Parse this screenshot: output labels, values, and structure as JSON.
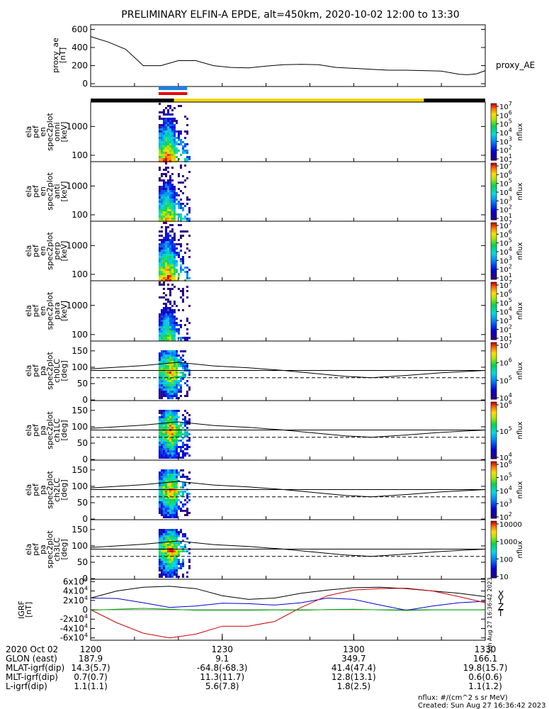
{
  "title": "PRELIMINARY ELFIN-A EPDE, alt=450km, 2020-10-02 12:00 to 13:30",
  "colors": {
    "ae_line": "#000000",
    "sci_blue": "#1e7fe6",
    "sci_red": "#e60000",
    "orbit_black": "#000000",
    "orbit_yellow": "#f5d60a",
    "grf_x": "#000000",
    "grf_y": "#0000cc",
    "grf_z": "#cc0000",
    "grf_t": "#00b000"
  },
  "chart_data": [
    {
      "type": "line",
      "panel": "proxy_ae",
      "ylabel": [
        "proxy_ae",
        "[nT]"
      ],
      "series_label": "proxy_AE",
      "ylim": [
        -30,
        650
      ],
      "yticks": [
        0,
        200,
        400,
        600
      ],
      "x_minutes": [
        0,
        4,
        8,
        12,
        16,
        20,
        24,
        28,
        32,
        36,
        40,
        44,
        48,
        52,
        56,
        60,
        64,
        68,
        72,
        76,
        80,
        84,
        86,
        88,
        90
      ],
      "values": [
        520,
        460,
        380,
        200,
        200,
        255,
        255,
        200,
        180,
        175,
        195,
        210,
        215,
        210,
        180,
        170,
        160,
        150,
        150,
        145,
        140,
        105,
        100,
        110,
        145
      ]
    },
    {
      "type": "heatmap",
      "panel": "omni",
      "ylabel": [
        "ela",
        "pef",
        "en",
        "spec2plot",
        "omni",
        "[keV]"
      ],
      "yticks": [
        "100",
        "1000"
      ],
      "colorbar_label": "nflux",
      "colorbar_ticks": [
        "10^1",
        "10^2",
        "10^3",
        "10^4",
        "10^5",
        "10^6",
        "10^7"
      ]
    },
    {
      "type": "heatmap",
      "panel": "anti",
      "ylabel": [
        "ela",
        "pef",
        "en",
        "spec2plot",
        "anti",
        "[keV]"
      ],
      "yticks": [
        "100",
        "1000"
      ],
      "colorbar_label": "nflux",
      "colorbar_ticks": [
        "10^1",
        "10^2",
        "10^3",
        "10^4",
        "10^5",
        "10^6",
        "10^7"
      ]
    },
    {
      "type": "heatmap",
      "panel": "perp",
      "ylabel": [
        "ela",
        "pef",
        "en",
        "spec2plot",
        "perp",
        "[keV]"
      ],
      "yticks": [
        "100",
        "1000"
      ],
      "colorbar_label": "nflux",
      "colorbar_ticks": [
        "10^1",
        "10^2",
        "10^3",
        "10^4",
        "10^5",
        "10^6",
        "10^7"
      ]
    },
    {
      "type": "heatmap",
      "panel": "para",
      "ylabel": [
        "ela",
        "pef",
        "en",
        "spec2plot",
        "para",
        "[keV]"
      ],
      "yticks": [
        "100",
        "1000"
      ],
      "colorbar_label": "nflux",
      "colorbar_ticks": [
        "10^1",
        "10^2",
        "10^3",
        "10^4",
        "10^5",
        "10^6",
        "10^7"
      ]
    },
    {
      "type": "heatmap",
      "panel": "ch0LC",
      "ylabel": [
        "ela",
        "pef",
        "pa",
        "spec2plot",
        "ch0LC",
        "[deg]"
      ],
      "yticks": [
        "0",
        "50",
        "100",
        "150"
      ],
      "colorbar_label": "nflux",
      "colorbar_ticks": [
        "10^4",
        "10^5",
        "10^6",
        "10^7"
      ]
    },
    {
      "type": "heatmap",
      "panel": "ch1LC",
      "ylabel": [
        "ela",
        "pef",
        "pa",
        "spec2plot",
        "ch1LC",
        "[deg]"
      ],
      "yticks": [
        "0",
        "50",
        "100",
        "150"
      ],
      "colorbar_label": "nflux",
      "colorbar_ticks": [
        "10^4",
        "10^5",
        "10^6"
      ]
    },
    {
      "type": "heatmap",
      "panel": "ch2LC",
      "ylabel": [
        "ela",
        "pef",
        "pa",
        "spec2plot",
        "ch2LC",
        "[deg]"
      ],
      "yticks": [
        "0",
        "50",
        "100",
        "150"
      ],
      "colorbar_label": "nflux",
      "colorbar_ticks": [
        "10^2",
        "10^3",
        "10^4",
        "10^5",
        "10^6"
      ]
    },
    {
      "type": "heatmap",
      "panel": "ch3LC",
      "ylabel": [
        "ela",
        "pef",
        "pa",
        "spec2plot",
        "ch3LC",
        "[deg]"
      ],
      "yticks": [
        "0",
        "50",
        "100",
        "150"
      ],
      "colorbar_label": "nflux",
      "colorbar_ticks": [
        "10",
        "100",
        "1000",
        "10000"
      ]
    },
    {
      "type": "line",
      "panel": "IGRF",
      "ylabel": [
        "IGRF",
        "[nT]"
      ],
      "yticks": [
        "-6x10^4",
        "-4x10^4",
        "-2x10^4",
        "0",
        "2x10^4",
        "4x10^4",
        "6x10^4"
      ],
      "ylim": [
        -65000,
        65000
      ],
      "legend": [
        "X",
        "Y",
        "Z",
        "T"
      ],
      "x_minutes": [
        0,
        6,
        12,
        18,
        24,
        30,
        36,
        42,
        48,
        54,
        60,
        66,
        72,
        78,
        84,
        90
      ],
      "series": [
        {
          "name": "X",
          "values": [
            25000,
            40000,
            48000,
            50000,
            45000,
            30000,
            22000,
            25000,
            35000,
            42000,
            47000,
            48000,
            45000,
            40000,
            35000,
            28000
          ]
        },
        {
          "name": "Y",
          "values": [
            25000,
            24000,
            15000,
            5000,
            8000,
            14000,
            13000,
            10000,
            15000,
            25000,
            22000,
            10000,
            -1000,
            8000,
            15000,
            18000
          ]
        },
        {
          "name": "Z",
          "values": [
            0,
            -28000,
            -50000,
            -60000,
            -52000,
            -35000,
            -35000,
            -25000,
            5000,
            30000,
            42000,
            45000,
            46000,
            40000,
            28000,
            15000
          ]
        },
        {
          "name": "T",
          "values": [
            -1000,
            1000,
            3000,
            1000,
            -1000,
            -1000,
            -1000,
            -500,
            -1000,
            500,
            1000,
            -500,
            -1500,
            -500,
            -500,
            -500
          ]
        }
      ]
    }
  ],
  "pa_lines": {
    "x_minutes": [
      0,
      12,
      20,
      28,
      36,
      44,
      52,
      58,
      64,
      72,
      80,
      90
    ],
    "upper_deg": [
      95,
      105,
      115,
      104,
      98,
      90,
      80,
      72,
      68,
      75,
      83,
      90
    ],
    "flat_solid_deg": 90,
    "flat_dashed_deg": 68
  },
  "orbit_bar": {
    "black_until_min": 19,
    "yellow_from_min": 19,
    "yellow_until_min": 76,
    "sci_blue": [
      15.5,
      22
    ],
    "sci_red": [
      15.5,
      22
    ]
  },
  "xaxis": {
    "rows": [
      {
        "label": "2020 Oct 02",
        "values": [
          "1200",
          "1230",
          "1300",
          "1330"
        ]
      },
      {
        "label": "GLON (east)",
        "values": [
          "187.9",
          "9.1",
          "349.7",
          "166.1"
        ]
      },
      {
        "label": "MLAT-igrf(dip)",
        "values": [
          "14.3(5.7)",
          "-64.8(-68.3)",
          "41.4(47.4)",
          "19.8(15.7)"
        ]
      },
      {
        "label": "MLT-igrf(dip)",
        "values": [
          "0.7(0.7)",
          "11.3(11.7)",
          "12.8(13.1)",
          "0.6(0.6)"
        ]
      },
      {
        "label": "L-igrf(dip)",
        "values": [
          "1.1(1.1)",
          "5.6(7.8)",
          "1.8(2.5)",
          "1.1(1.2)"
        ]
      }
    ]
  },
  "footer": {
    "units": "nflux: #/(cm^2 s sr MeV)",
    "created": "Created: Sun Aug 27 16:36:42 2023",
    "stamp": "Sun Aug 27 16:36:42 2023"
  }
}
